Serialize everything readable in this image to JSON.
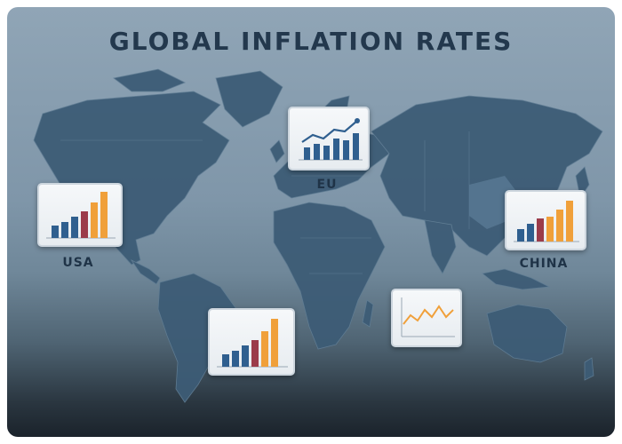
{
  "title": "GLOBAL INFLATION RATES",
  "regions": [
    {
      "name": "USA",
      "chart": "bar"
    },
    {
      "name": "EU",
      "chart": "bar-with-trend"
    },
    {
      "name": "CHINA",
      "chart": "bar"
    },
    {
      "name": "",
      "chart": "bar"
    },
    {
      "name": "",
      "chart": "line"
    }
  ],
  "colors": {
    "title": "#23384d",
    "bar_blue": "#2f5f8f",
    "bar_red": "#9b3b4a",
    "bar_orange": "#f0a03a",
    "map_land": "#3a5a74",
    "background": "#8196a9"
  }
}
